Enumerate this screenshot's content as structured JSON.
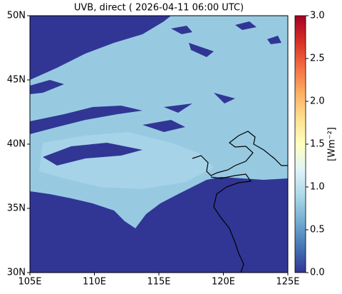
{
  "chart_data": {
    "type": "map",
    "title": "UVB, direct ( 2026-04-11 06:00 UTC)",
    "xlim": [
      105,
      125
    ],
    "ylim": [
      30,
      50
    ],
    "xticks": [
      {
        "value": 105,
        "label": "105E"
      },
      {
        "value": 110,
        "label": "110E"
      },
      {
        "value": 115,
        "label": "115E"
      },
      {
        "value": 120,
        "label": "120E"
      },
      {
        "value": 125,
        "label": "125E"
      }
    ],
    "yticks": [
      {
        "value": 30,
        "label": "30N"
      },
      {
        "value": 35,
        "label": "35N"
      },
      {
        "value": 40,
        "label": "40N"
      },
      {
        "value": 45,
        "label": "45N"
      },
      {
        "value": 50,
        "label": "50N"
      }
    ],
    "colorbar": {
      "label": "[Wm⁻²]",
      "clim": [
        0,
        3
      ],
      "ticks": [
        {
          "value": 0,
          "label": "0.0"
        },
        {
          "value": 0.5,
          "label": "0.5"
        },
        {
          "value": 1,
          "label": "1.0"
        },
        {
          "value": 1.5,
          "label": "1.5"
        },
        {
          "value": 2,
          "label": "2.0"
        },
        {
          "value": 2.5,
          "label": "2.5"
        },
        {
          "value": 3,
          "label": "3.0"
        }
      ],
      "colormap": [
        "#313695",
        "#4575b4",
        "#74add1",
        "#abd9e9",
        "#e0f3f8",
        "#ffffbf",
        "#fee090",
        "#fdae61",
        "#f46d43",
        "#d73027",
        "#a50026"
      ]
    }
  }
}
